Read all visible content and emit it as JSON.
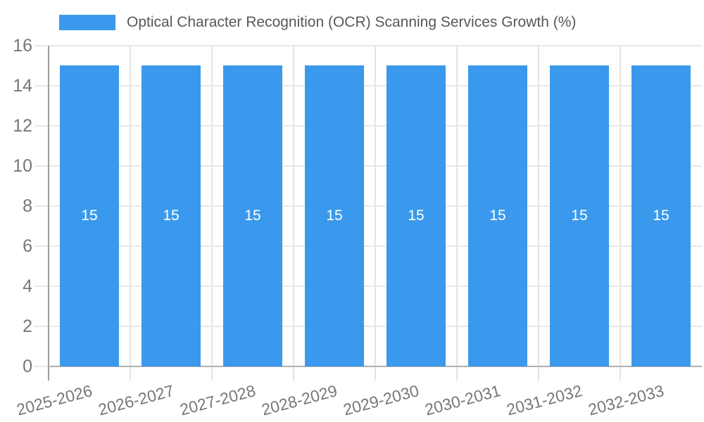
{
  "legend": {
    "label": "Optical Character Recognition (OCR) Scanning Services Growth (%)"
  },
  "chart_data": {
    "type": "bar",
    "title": "Optical Character Recognition (OCR) Scanning Services Growth (%)",
    "xlabel": "",
    "ylabel": "",
    "categories": [
      "2025-2026",
      "2026-2027",
      "2027-2028",
      "2028-2029",
      "2029-2030",
      "2030-2031",
      "2031-2032",
      "2032-2033"
    ],
    "values": [
      15,
      15,
      15,
      15,
      15,
      15,
      15,
      15
    ],
    "value_labels": [
      "15",
      "15",
      "15",
      "15",
      "15",
      "15",
      "15",
      "15"
    ],
    "ylim": [
      0,
      16
    ],
    "yticks": [
      0,
      2,
      4,
      6,
      8,
      10,
      12,
      14,
      16
    ],
    "grid": true,
    "legend_position": "top-left",
    "x_label_rotation_deg": -15,
    "bar_color": "#3a99ec",
    "value_label_color": "#ffffff",
    "axis_text_color": "#777777",
    "legend_text_color": "#58585b"
  }
}
